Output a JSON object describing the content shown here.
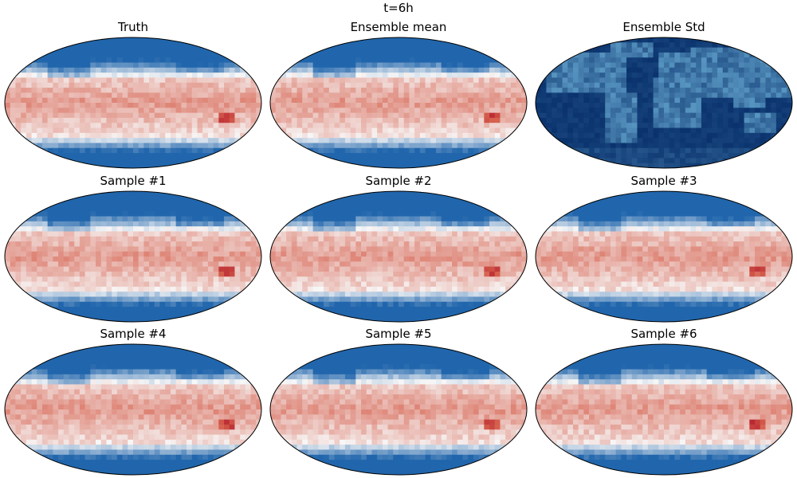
{
  "figure": {
    "suptitle": "t=6h"
  },
  "panels": [
    {
      "title": "Truth",
      "colormap": "RdBu_r",
      "kind": "field"
    },
    {
      "title": "Ensemble mean",
      "colormap": "RdBu_r",
      "kind": "field"
    },
    {
      "title": "Ensemble Std",
      "colormap": "Blues_r",
      "kind": "std"
    },
    {
      "title": "Sample #1",
      "colormap": "RdBu_r",
      "kind": "field"
    },
    {
      "title": "Sample #2",
      "colormap": "RdBu_r",
      "kind": "field"
    },
    {
      "title": "Sample #3",
      "colormap": "RdBu_r",
      "kind": "field"
    },
    {
      "title": "Sample #4",
      "colormap": "RdBu_r",
      "kind": "field"
    },
    {
      "title": "Sample #5",
      "colormap": "RdBu_r",
      "kind": "field"
    },
    {
      "title": "Sample #6",
      "colormap": "RdBu_r",
      "kind": "field"
    }
  ],
  "colors": {
    "field_cold": "#2166ac",
    "field_white": "#f7f7f7",
    "field_warm": "#d6604d",
    "field_hot": "#b2182b",
    "std_low": "#08306b",
    "std_high": "#6baed6",
    "outline": "#000000"
  }
}
